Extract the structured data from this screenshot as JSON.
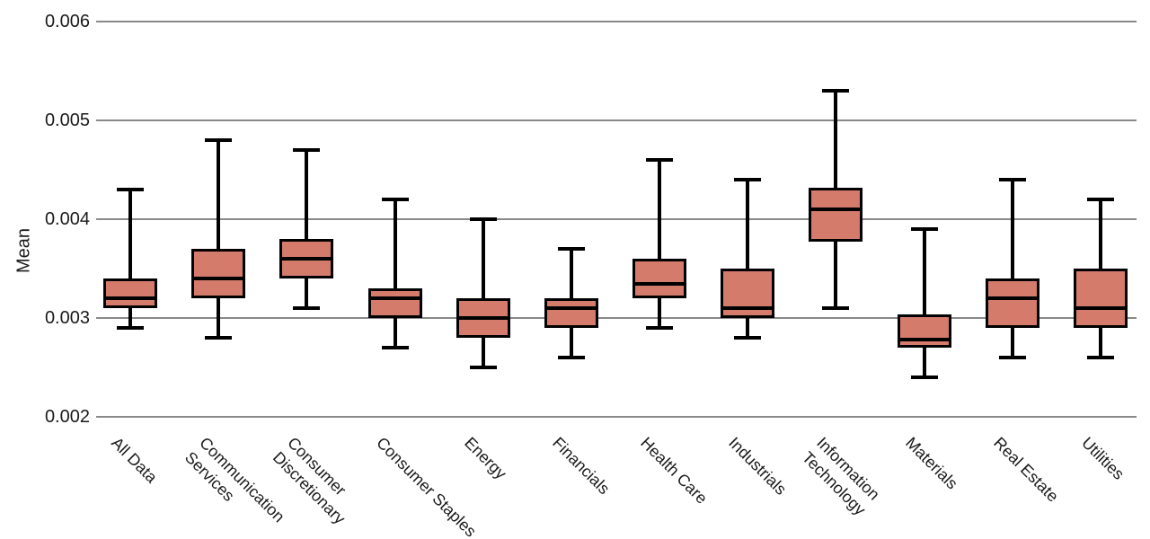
{
  "chart_data": {
    "type": "box",
    "title": "",
    "xlabel": "",
    "ylabel": "Mean",
    "legend": "none",
    "grid": "horizontal",
    "y_axis": {
      "range": [
        0.002,
        0.006
      ],
      "tick_values": [
        0.006,
        0.005,
        0.004,
        0.003,
        0.002
      ],
      "tick_labels": [
        "0.006",
        "0.005",
        "0.004",
        "0.003",
        "0.002"
      ]
    },
    "colors": {
      "box_fill": "#d47b6c",
      "box_line": "#000000",
      "gridline": "#898989",
      "text": "#1a1a1a"
    },
    "boxes": [
      {
        "category": "All Data",
        "label_lines": [
          "All Data"
        ],
        "whisker_low": 0.0029,
        "q1": 0.0031,
        "median": 0.0032,
        "q3": 0.0034,
        "whisker_high": 0.0043
      },
      {
        "category": "Communication Services",
        "label_lines": [
          "Communication",
          "Services"
        ],
        "whisker_low": 0.0028,
        "q1": 0.0032,
        "median": 0.0034,
        "q3": 0.0037,
        "whisker_high": 0.0048
      },
      {
        "category": "Consumer Discretionary",
        "label_lines": [
          "Consumer",
          "Discretionary"
        ],
        "whisker_low": 0.0031,
        "q1": 0.0034,
        "median": 0.0036,
        "q3": 0.0038,
        "whisker_high": 0.0047
      },
      {
        "category": "Consumer Staples",
        "label_lines": [
          "Consumer Staples"
        ],
        "whisker_low": 0.0027,
        "q1": 0.003,
        "median": 0.0032,
        "q3": 0.0033,
        "whisker_high": 0.0042
      },
      {
        "category": "Energy",
        "label_lines": [
          "Energy"
        ],
        "whisker_low": 0.0025,
        "q1": 0.0028,
        "median": 0.003,
        "q3": 0.0032,
        "whisker_high": 0.004
      },
      {
        "category": "Financials",
        "label_lines": [
          "Financials"
        ],
        "whisker_low": 0.0026,
        "q1": 0.0029,
        "median": 0.0031,
        "q3": 0.0032,
        "whisker_high": 0.0037
      },
      {
        "category": "Health Care",
        "label_lines": [
          "Health Care"
        ],
        "whisker_low": 0.0029,
        "q1": 0.0032,
        "median": 0.00335,
        "q3": 0.0036,
        "whisker_high": 0.0046
      },
      {
        "category": "Industrials",
        "label_lines": [
          "Industrials"
        ],
        "whisker_low": 0.0028,
        "q1": 0.003,
        "median": 0.0031,
        "q3": 0.0035,
        "whisker_high": 0.0044
      },
      {
        "category": "Information Technology",
        "label_lines": [
          "Information",
          "Technology"
        ],
        "whisker_low": 0.0031,
        "q1": 0.00377,
        "median": 0.0041,
        "q3": 0.00432,
        "whisker_high": 0.0053
      },
      {
        "category": "Materials",
        "label_lines": [
          "Materials"
        ],
        "whisker_low": 0.0024,
        "q1": 0.0027,
        "median": 0.00278,
        "q3": 0.00304,
        "whisker_high": 0.0039
      },
      {
        "category": "Real Estate",
        "label_lines": [
          "Real Estate"
        ],
        "whisker_low": 0.0026,
        "q1": 0.0029,
        "median": 0.0032,
        "q3": 0.0034,
        "whisker_high": 0.0044
      },
      {
        "category": "Utilities",
        "label_lines": [
          "Utilities"
        ],
        "whisker_low": 0.0026,
        "q1": 0.0029,
        "median": 0.0031,
        "q3": 0.0035,
        "whisker_high": 0.0042
      }
    ]
  }
}
